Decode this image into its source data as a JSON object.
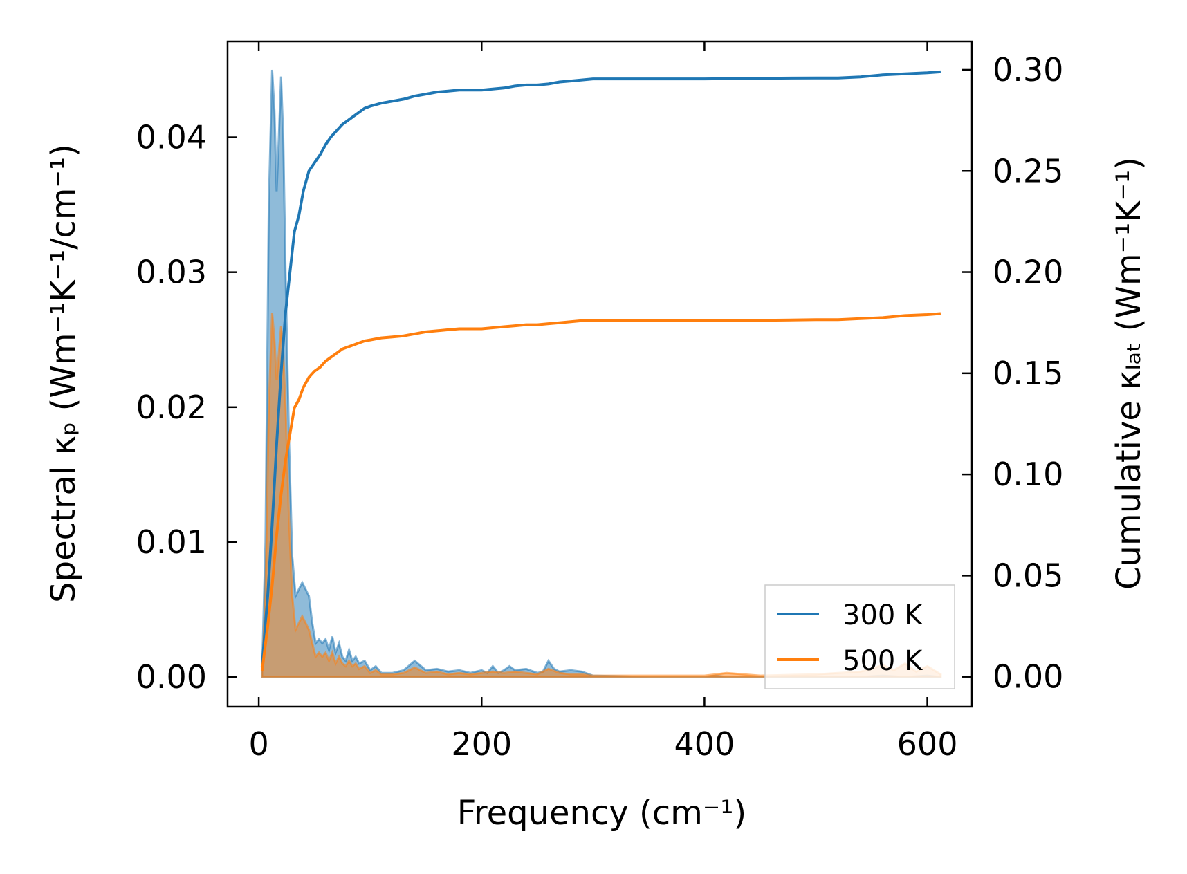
{
  "chart_data": {
    "type": "line",
    "xlabel": "Frequency (cm⁻¹)",
    "ylabel_left": "Spectral κₚ (Wm⁻¹K⁻¹/cm⁻¹)",
    "ylabel_right": "Cumulative κₗₐₜ (Wm⁻¹K⁻¹)",
    "xlim": [
      -28,
      640
    ],
    "ylim_left": [
      -0.0022,
      0.0471
    ],
    "ylim_right": [
      -0.0148,
      0.314
    ],
    "x_ticks": [
      0,
      200,
      400,
      600
    ],
    "x_tick_labels": [
      "0",
      "200",
      "400",
      "600"
    ],
    "y_left_ticks": [
      0.0,
      0.01,
      0.02,
      0.03,
      0.04
    ],
    "y_left_tick_labels": [
      "0.00",
      "0.01",
      "0.02",
      "0.03",
      "0.04"
    ],
    "y_right_ticks": [
      0.0,
      0.05,
      0.1,
      0.15,
      0.2,
      0.25,
      0.3
    ],
    "y_right_tick_labels": [
      "0.00",
      "0.05",
      "0.10",
      "0.15",
      "0.20",
      "0.25",
      "0.30"
    ],
    "legend_location": "lower-right",
    "series": [
      {
        "name": "300 K",
        "color": "#1f77b4",
        "cumulative": {
          "x": [
            3,
            8,
            12,
            16,
            20,
            24,
            28,
            32,
            36,
            40,
            45,
            50,
            55,
            60,
            65,
            70,
            75,
            80,
            85,
            90,
            95,
            100,
            110,
            120,
            130,
            140,
            150,
            160,
            170,
            180,
            190,
            200,
            210,
            220,
            230,
            240,
            250,
            260,
            270,
            280,
            290,
            300,
            320,
            350,
            400,
            450,
            500,
            520,
            540,
            560,
            580,
            600,
            612
          ],
          "y": [
            0.005,
            0.04,
            0.075,
            0.115,
            0.15,
            0.18,
            0.2,
            0.22,
            0.228,
            0.24,
            0.25,
            0.254,
            0.258,
            0.263,
            0.267,
            0.27,
            0.273,
            0.275,
            0.277,
            0.279,
            0.281,
            0.282,
            0.2835,
            0.2845,
            0.2855,
            0.287,
            0.288,
            0.289,
            0.2895,
            0.29,
            0.29,
            0.29,
            0.2905,
            0.291,
            0.292,
            0.2925,
            0.2925,
            0.293,
            0.294,
            0.2945,
            0.295,
            0.2955,
            0.2955,
            0.2955,
            0.2955,
            0.2958,
            0.296,
            0.296,
            0.2965,
            0.2975,
            0.298,
            0.2985,
            0.299
          ]
        },
        "spectral": {
          "x": [
            3,
            6,
            9,
            12,
            14,
            16,
            18,
            20,
            22,
            24,
            27,
            30,
            33,
            36,
            39,
            42,
            45,
            48,
            51,
            54,
            57,
            60,
            63,
            66,
            69,
            72,
            75,
            78,
            81,
            84,
            87,
            90,
            95,
            100,
            105,
            110,
            120,
            130,
            140,
            150,
            160,
            170,
            180,
            190,
            200,
            205,
            210,
            215,
            220,
            225,
            230,
            240,
            250,
            255,
            260,
            265,
            270,
            280,
            290,
            300,
            350,
            400,
            410,
            420,
            450,
            500,
            520,
            540,
            560,
            580,
            600,
            612
          ],
          "y": [
            0.0005,
            0.01,
            0.035,
            0.045,
            0.042,
            0.036,
            0.04,
            0.0445,
            0.04,
            0.03,
            0.018,
            0.009,
            0.006,
            0.0065,
            0.007,
            0.0065,
            0.006,
            0.004,
            0.0025,
            0.0028,
            0.0025,
            0.0028,
            0.002,
            0.003,
            0.0018,
            0.0025,
            0.0015,
            0.0012,
            0.002,
            0.0012,
            0.0015,
            0.001,
            0.0012,
            0.0005,
            0.0008,
            0.0003,
            0.0003,
            0.0005,
            0.0012,
            0.0005,
            0.0006,
            0.0004,
            0.0005,
            0.0003,
            0.0005,
            0.0003,
            0.0008,
            0.0003,
            0.0005,
            0.0008,
            0.0005,
            0.0006,
            0.0003,
            0.0004,
            0.0012,
            0.0006,
            0.0004,
            0.0005,
            0.0004,
            0.0001,
            0.0,
            0.0,
            0.0001,
            0.0,
            0.0,
            0.0,
            0.0,
            0.0,
            0.0001,
            0.0,
            0.0001,
            0.0
          ]
        }
      },
      {
        "name": "500 K",
        "color": "#ff7f0e",
        "cumulative": {
          "x": [
            3,
            8,
            12,
            16,
            20,
            24,
            28,
            32,
            36,
            40,
            45,
            50,
            55,
            60,
            65,
            70,
            75,
            80,
            85,
            90,
            95,
            100,
            110,
            120,
            130,
            140,
            150,
            160,
            170,
            180,
            190,
            200,
            210,
            220,
            230,
            240,
            250,
            260,
            270,
            280,
            290,
            300,
            320,
            350,
            400,
            450,
            500,
            520,
            540,
            560,
            580,
            600,
            612
          ],
          "y": [
            0.003,
            0.025,
            0.045,
            0.07,
            0.09,
            0.107,
            0.12,
            0.133,
            0.137,
            0.143,
            0.148,
            0.151,
            0.153,
            0.156,
            0.158,
            0.16,
            0.162,
            0.163,
            0.164,
            0.165,
            0.166,
            0.1665,
            0.1675,
            0.168,
            0.1685,
            0.1695,
            0.1705,
            0.171,
            0.1715,
            0.172,
            0.172,
            0.172,
            0.1725,
            0.173,
            0.1735,
            0.174,
            0.174,
            0.1745,
            0.175,
            0.1755,
            0.176,
            0.176,
            0.176,
            0.176,
            0.176,
            0.1762,
            0.1765,
            0.1765,
            0.177,
            0.1775,
            0.1785,
            0.179,
            0.1795
          ]
        },
        "spectral": {
          "x": [
            3,
            6,
            9,
            12,
            14,
            16,
            18,
            20,
            22,
            24,
            27,
            30,
            33,
            36,
            39,
            42,
            45,
            48,
            51,
            54,
            57,
            60,
            63,
            66,
            69,
            72,
            75,
            78,
            81,
            84,
            87,
            90,
            95,
            100,
            105,
            110,
            120,
            130,
            140,
            150,
            160,
            170,
            180,
            190,
            200,
            210,
            220,
            230,
            240,
            250,
            260,
            270,
            280,
            290,
            300,
            350,
            400,
            410,
            420,
            450,
            500,
            520,
            540,
            550,
            560,
            570,
            580,
            590,
            600,
            612
          ],
          "y": [
            0.0003,
            0.006,
            0.02,
            0.027,
            0.025,
            0.022,
            0.024,
            0.026,
            0.024,
            0.02,
            0.012,
            0.006,
            0.0035,
            0.004,
            0.0045,
            0.004,
            0.0035,
            0.0025,
            0.0015,
            0.0018,
            0.0015,
            0.0018,
            0.0012,
            0.0018,
            0.001,
            0.0015,
            0.001,
            0.0008,
            0.0012,
            0.0008,
            0.001,
            0.0006,
            0.0008,
            0.0003,
            0.0005,
            0.0002,
            0.0002,
            0.0003,
            0.0007,
            0.0003,
            0.0004,
            0.0002,
            0.0003,
            0.0002,
            0.0003,
            0.0004,
            0.0003,
            0.0004,
            0.0003,
            0.0002,
            0.0006,
            0.0003,
            0.0002,
            0.0002,
            0.0001,
            0.0001,
            0.0001,
            0.0002,
            0.0003,
            0.0001,
            0.0002,
            0.0003,
            0.0004,
            0.0006,
            0.0009,
            0.0005,
            0.001,
            0.0004,
            0.0008,
            0.0002
          ]
        }
      }
    ]
  }
}
